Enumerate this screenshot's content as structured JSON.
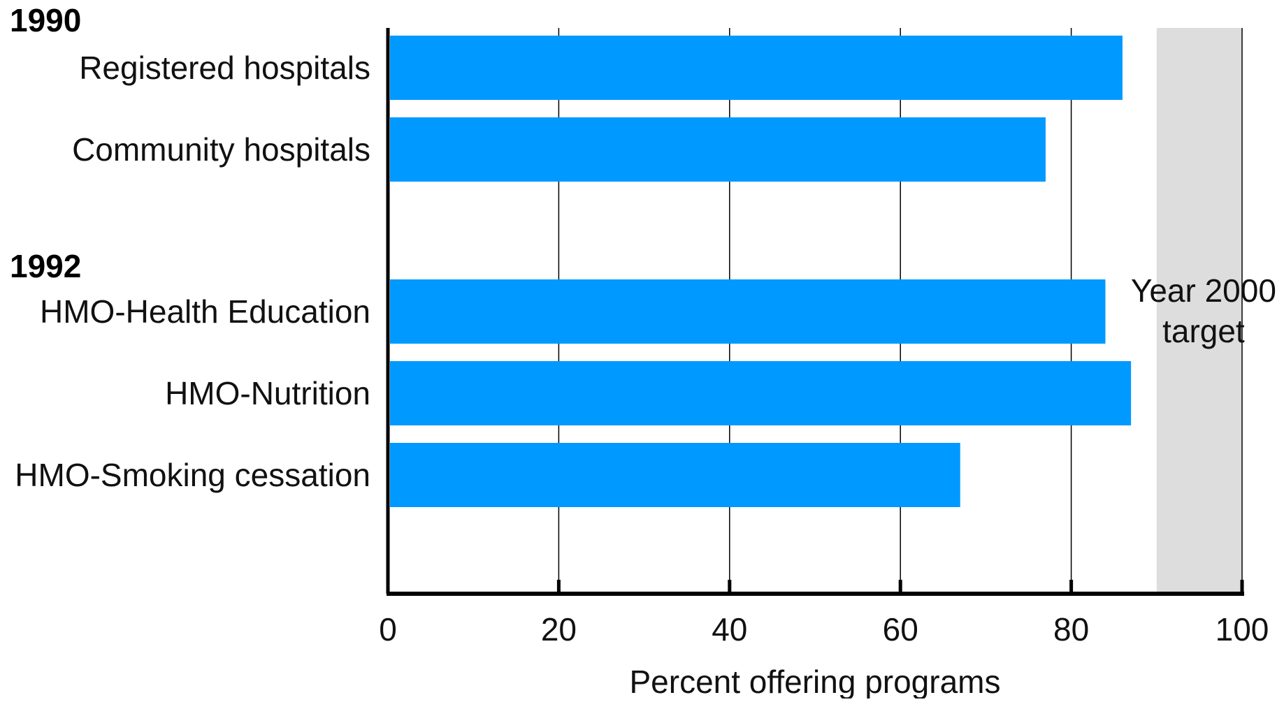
{
  "chart_data": {
    "type": "bar",
    "orientation": "horizontal",
    "xlabel": "Percent offering programs",
    "ylabel": "",
    "xlim": [
      0,
      100
    ],
    "xticks": [
      0,
      20,
      40,
      60,
      80,
      100
    ],
    "bar_color": "#0099FF",
    "groups": [
      {
        "label": "1990",
        "categories": [
          "Registered hospitals",
          "Community hospitals"
        ],
        "values": [
          86,
          77
        ]
      },
      {
        "label": "1992",
        "categories": [
          "HMO-Health Education",
          "HMO-Nutrition",
          "HMO-Smoking cessation"
        ],
        "values": [
          84,
          87,
          67
        ]
      }
    ],
    "target_band": {
      "label_line1": "Year 2000",
      "label_line2": "target",
      "range": [
        90,
        100
      ],
      "color": "#DDDDDD"
    },
    "grid": true
  }
}
